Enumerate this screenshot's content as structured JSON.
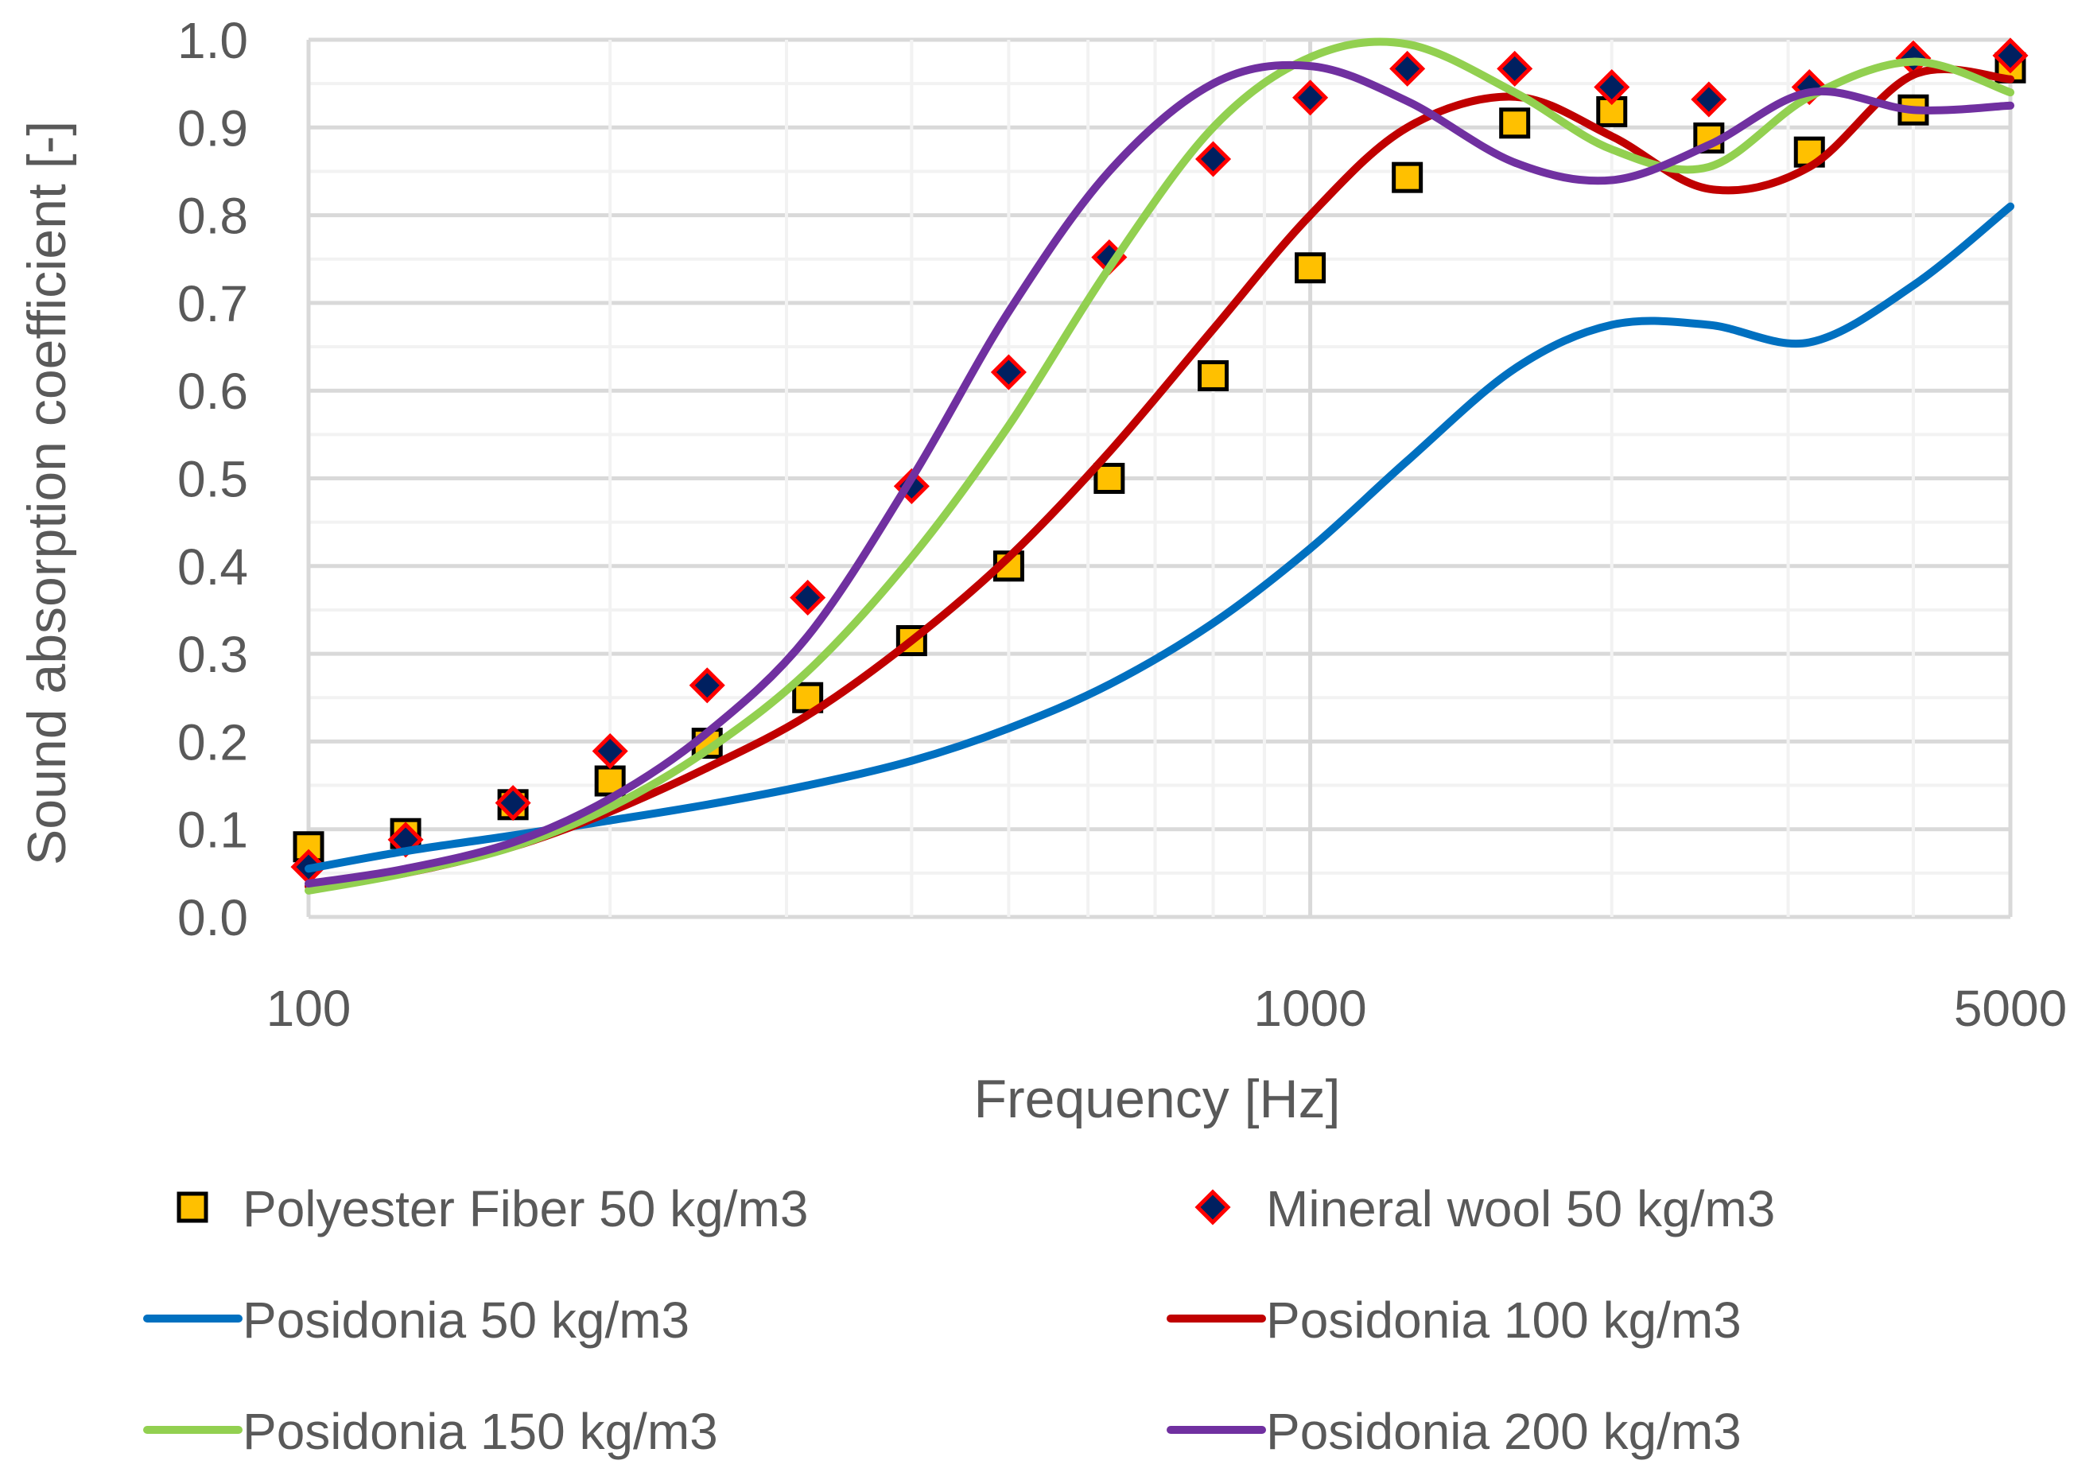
{
  "chart_data": {
    "type": "line",
    "title": "",
    "xlabel": "Frequency [Hz]",
    "ylabel": "Sound absorption coefficient [-]",
    "xscale": "log",
    "xlim": [
      100,
      5000
    ],
    "ylim": [
      0,
      1
    ],
    "grid": true,
    "x_tick_labels": [
      "100",
      "1000",
      "5000"
    ],
    "x_ticks": [
      100,
      1000,
      5000
    ],
    "y_tick_labels": [
      "0.0",
      "0.1",
      "0.2",
      "0.3",
      "0.4",
      "0.5",
      "0.6",
      "0.7",
      "0.8",
      "0.9",
      "1.0"
    ],
    "legend_position": "bottom",
    "x": [
      100,
      125,
      160,
      200,
      250,
      315,
      400,
      500,
      630,
      800,
      1000,
      1250,
      1600,
      2000,
      2500,
      3150,
      4000,
      5000
    ],
    "series": [
      {
        "name": "Polyester Fiber 50 kg/m3",
        "kind": "marker-square",
        "color": "#ffc000",
        "edge": "#000000",
        "values": [
          0.08,
          0.095,
          0.128,
          0.155,
          0.198,
          0.25,
          0.315,
          0.4,
          0.5,
          0.617,
          0.74,
          0.843,
          0.905,
          0.918,
          0.888,
          0.872,
          0.92,
          0.968
        ]
      },
      {
        "name": "Mineral wool 50 kg/m3",
        "kind": "marker-diamond",
        "color": "#002060",
        "edge": "#ff0000",
        "values": [
          0.057,
          0.088,
          0.13,
          0.189,
          0.264,
          0.364,
          0.491,
          0.621,
          0.752,
          0.864,
          0.934,
          0.967,
          0.967,
          0.946,
          0.932,
          0.946,
          0.979,
          0.982
        ]
      },
      {
        "name": "Posidonia 50 kg/m3",
        "kind": "line",
        "color": "#0070c0",
        "values": [
          0.055,
          0.075,
          0.093,
          0.11,
          0.128,
          0.15,
          0.178,
          0.215,
          0.265,
          0.335,
          0.42,
          0.52,
          0.625,
          0.675,
          0.675,
          0.655,
          0.72,
          0.81
        ]
      },
      {
        "name": "Posidonia 100 kg/m3",
        "kind": "line",
        "color": "#c00000",
        "values": [
          0.035,
          0.05,
          0.08,
          0.12,
          0.17,
          0.23,
          0.315,
          0.41,
          0.53,
          0.67,
          0.8,
          0.9,
          0.935,
          0.89,
          0.83,
          0.855,
          0.96,
          0.955
        ]
      },
      {
        "name": "Posidonia 150 kg/m3",
        "kind": "line",
        "color": "#92d050",
        "values": [
          0.03,
          0.05,
          0.08,
          0.125,
          0.19,
          0.28,
          0.41,
          0.56,
          0.74,
          0.9,
          0.98,
          0.995,
          0.94,
          0.875,
          0.855,
          0.935,
          0.975,
          0.94
        ]
      },
      {
        "name": "Posidonia 200 kg/m3",
        "kind": "line",
        "color": "#7030a0",
        "values": [
          0.038,
          0.055,
          0.085,
          0.135,
          0.21,
          0.32,
          0.5,
          0.69,
          0.85,
          0.95,
          0.97,
          0.93,
          0.86,
          0.84,
          0.88,
          0.94,
          0.92,
          0.925
        ]
      }
    ]
  }
}
